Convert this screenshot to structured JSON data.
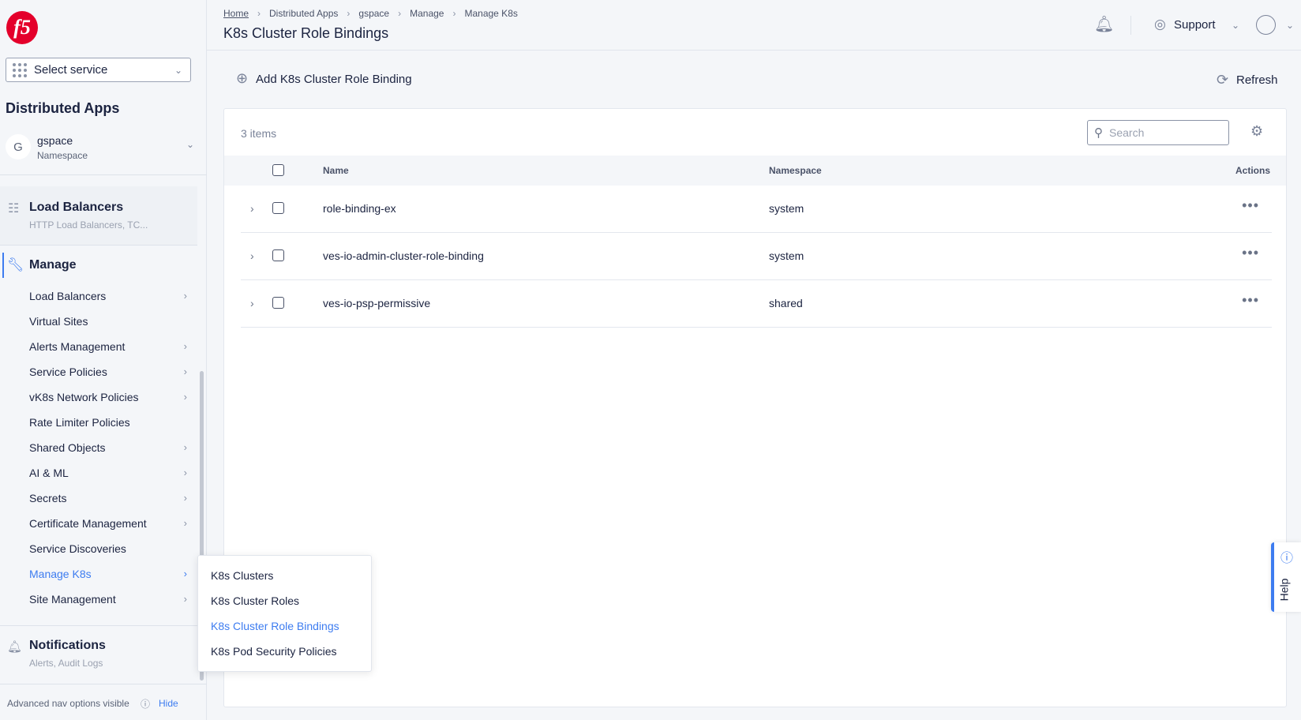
{
  "sidebar": {
    "logo": "f5",
    "select_service": "Select service",
    "app_title": "Distributed Apps",
    "namespace": {
      "initial": "G",
      "name": "gspace",
      "label": "Namespace"
    },
    "load_balancers": {
      "title": "Load Balancers",
      "subtitle": "HTTP Load Balancers, TC..."
    },
    "manage": {
      "title": "Manage",
      "items": [
        {
          "label": "Load Balancers",
          "submenu": true
        },
        {
          "label": "Virtual Sites",
          "submenu": false
        },
        {
          "label": "Alerts Management",
          "submenu": true
        },
        {
          "label": "Service Policies",
          "submenu": true
        },
        {
          "label": "vK8s Network Policies",
          "submenu": true
        },
        {
          "label": "Rate Limiter Policies",
          "submenu": false
        },
        {
          "label": "Shared Objects",
          "submenu": true
        },
        {
          "label": "AI & ML",
          "submenu": true
        },
        {
          "label": "Secrets",
          "submenu": true
        },
        {
          "label": "Certificate Management",
          "submenu": true
        },
        {
          "label": "Service Discoveries",
          "submenu": false
        },
        {
          "label": "Manage K8s",
          "submenu": true,
          "active": true
        },
        {
          "label": "Site Management",
          "submenu": true
        }
      ]
    },
    "notifications": {
      "title": "Notifications",
      "subtitle": "Alerts, Audit Logs"
    },
    "footer": {
      "text": "Advanced nav options visible",
      "hide": "Hide"
    }
  },
  "submenu": {
    "items": [
      "K8s Clusters",
      "K8s Cluster Roles",
      "K8s Cluster Role Bindings",
      "K8s Pod Security Policies"
    ],
    "active_index": 2
  },
  "header": {
    "breadcrumb": [
      "Home",
      "Distributed Apps",
      "gspace",
      "Manage",
      "Manage K8s"
    ],
    "title": "K8s Cluster Role Bindings",
    "support": "Support"
  },
  "toolbar": {
    "add": "Add K8s Cluster Role Binding",
    "refresh": "Refresh"
  },
  "table": {
    "count": "3 items",
    "search_placeholder": "Search",
    "columns": [
      "Name",
      "Namespace",
      "Actions"
    ],
    "rows": [
      {
        "name": "role-binding-ex",
        "namespace": "system"
      },
      {
        "name": "ves-io-admin-cluster-role-binding",
        "namespace": "system"
      },
      {
        "name": "ves-io-psp-permissive",
        "namespace": "shared"
      }
    ]
  },
  "help": "Help",
  "colors": {
    "accent": "#3d7cf0",
    "brand": "#e4002b"
  }
}
